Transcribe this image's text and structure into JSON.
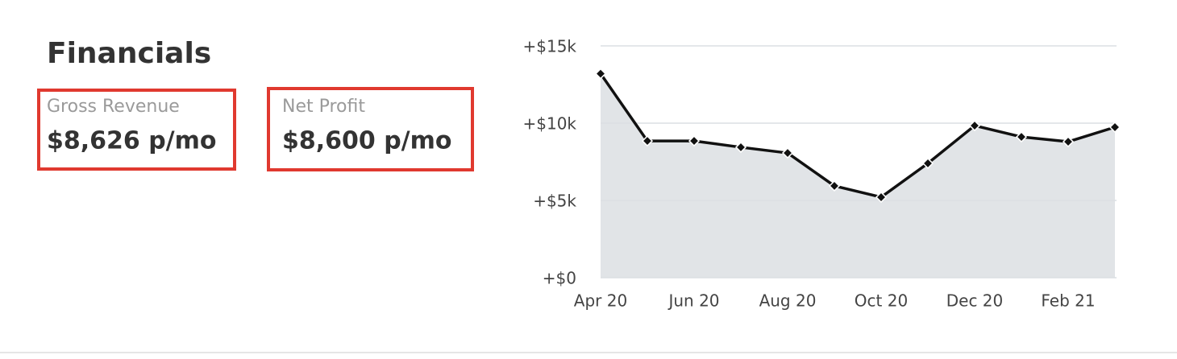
{
  "header": {
    "title": "Financials"
  },
  "cards": [
    {
      "label": "Gross Revenue",
      "value": "$8,626 p/mo"
    },
    {
      "label": "Net Profit",
      "value": "$8,600 p/mo"
    }
  ],
  "chart_data": {
    "type": "area",
    "categories": [
      "Apr 20",
      null,
      "Jun 20",
      null,
      "Aug 20",
      null,
      "Oct 20",
      null,
      "Dec 20",
      null,
      "Feb 21",
      null
    ],
    "values": [
      13200,
      8850,
      8850,
      8440,
      8070,
      5940,
      5210,
      7400,
      9840,
      9110,
      8800,
      9740
    ],
    "color": "#111111",
    "fill": "#e1e4e7",
    "ylim": [
      0,
      15000
    ],
    "yticks": [
      {
        "value": 0,
        "label": "+$0"
      },
      {
        "value": 5000,
        "label": "+$5k"
      },
      {
        "value": 10000,
        "label": "+$10k"
      },
      {
        "value": 15000,
        "label": "+$15k"
      }
    ],
    "grid": true
  }
}
